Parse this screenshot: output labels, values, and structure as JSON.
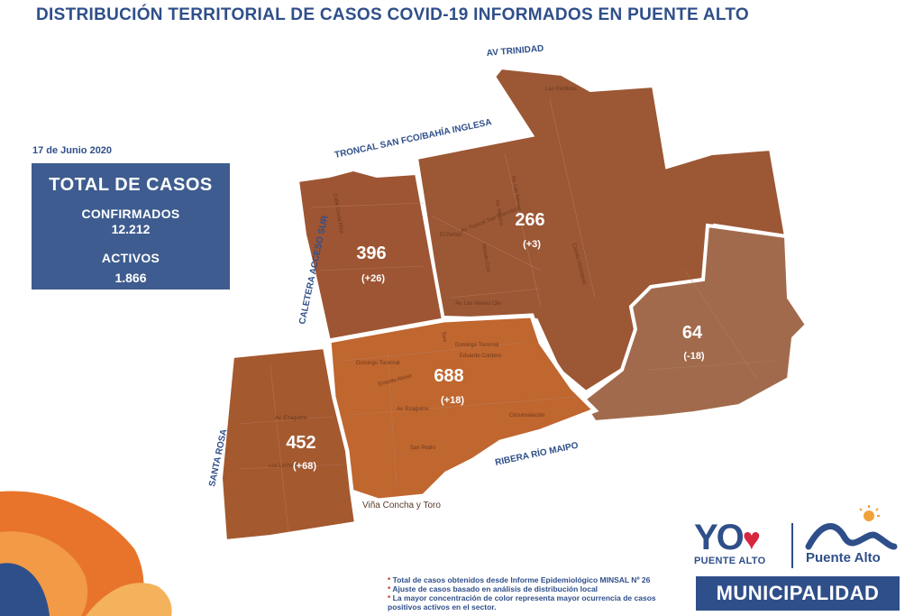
{
  "title": "DISTRIBUCIÓN TERRITORIAL DE CASOS COVID-19 INFORMADOS EN PUENTE ALTO",
  "date": "17 de Junio 2020",
  "totals": {
    "heading": "TOTAL DE CASOS",
    "confirmed_label": "CONFIRMADOS",
    "confirmed_value": "12.212",
    "active_label": "ACTIVOS",
    "active_value": "1.866"
  },
  "roads": {
    "av_trinidad": "AV TRINIDAD",
    "troncal": "TRONCAL SAN FCO/BAHÍA INGLESA",
    "caletera": "CALETERA ACCESO SUR",
    "santa_rosa": "SANTA ROSA",
    "ribera": "RIBERA RÍO MAIPO"
  },
  "sectors": [
    {
      "id": "northwest",
      "cases": "396",
      "change": "(+26)",
      "color": "#9e5533"
    },
    {
      "id": "north",
      "cases": "266",
      "change": "(+3)",
      "color": "#9c5735"
    },
    {
      "id": "east",
      "cases": "64",
      "change": "(-18)",
      "color": "#a26a4c"
    },
    {
      "id": "center",
      "cases": "688",
      "change": "(+18)",
      "color": "#c0662f"
    },
    {
      "id": "southwest",
      "cases": "452",
      "change": "(+68)",
      "color": "#a4592f"
    }
  ],
  "streets": {
    "las_perdices": "Las Perdices",
    "calle_costa_rica": "Calle Costa Rica",
    "av_las_nieves": "Av. Las Nieves",
    "av_mexico": "Av. Mexico",
    "el_penon": "El Peñon",
    "troncal_san_francisco": "Av. Troncal San Francisco",
    "nonato_coo": "Nonato Coo",
    "nieves_ote": "Av. Las Nieves Ote",
    "camilo_henriquez": "Camilo Henriquez",
    "domingo_tocornal_1": "Domingo Tocornal",
    "domingo_tocornal_2": "Domingo Tocornal",
    "eduardo_cordero": "Eduardo Cordero",
    "ernesto_alvear": "Ernesto Alvear",
    "av_ezaguirre_1": "Av. Ezaguirre",
    "av_ezaguirre_2": "Av. Ezaguirre",
    "circunvalacion": "Circunvalación",
    "san_pedro": "San Pedro",
    "vina_concha": "Viña Concha y Toro",
    "lecheros": "Los Lecheros",
    "toro": "Toro"
  },
  "notes": [
    "Total de casos obtenidos desde Informe Epidemiológico MINSAL Nº 26",
    "Ajuste de casos basado en análisis de distribución local",
    "La mayor concentración de color representa mayor ocurrencia de casos positivos activos en el sector."
  ],
  "logos": {
    "yo_text": "YO",
    "yo_sub": "PUENTE ALTO",
    "puente_alto": "Puente Alto",
    "municipalidad": "MUNICIPALIDAD"
  },
  "colors": {
    "brand_blue": "#2f4f8a",
    "box_blue": "#3e5c8f",
    "heart_red": "#d7263d"
  }
}
